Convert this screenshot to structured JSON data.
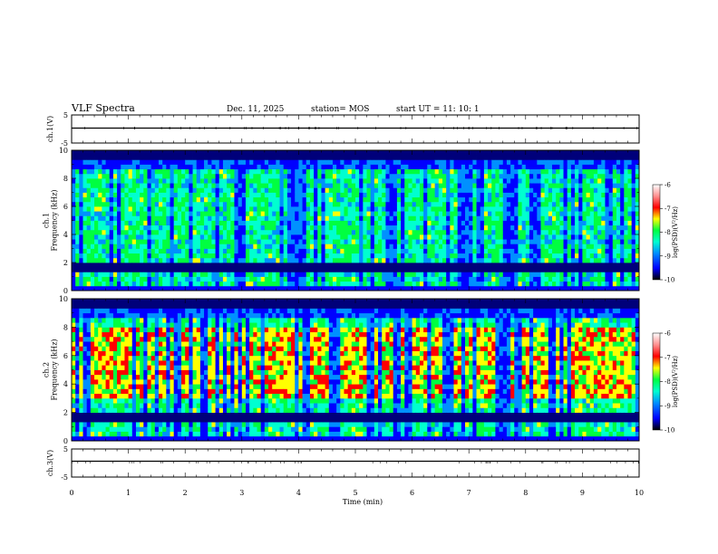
{
  "header": {
    "title": "VLF Spectra",
    "date": "Dec. 11, 2025",
    "station": "station= MOS",
    "start": "start  UT =   11: 10: 1"
  },
  "colors": {
    "spectrum": [
      "#00007a",
      "#0000ff",
      "#0090ff",
      "#00ffd0",
      "#00ff40",
      "#ffff00",
      "#ff0000",
      "#ff9090",
      "#ffffff"
    ]
  },
  "chart_data": [
    {
      "type": "line",
      "name": "ch1-waveform",
      "ylabel": "ch.1(V)",
      "ylim": [
        -5,
        5
      ],
      "yticks": [
        5,
        -5
      ],
      "x": [
        0,
        10
      ],
      "values": [
        0,
        0
      ],
      "xlim": [
        0,
        10
      ]
    },
    {
      "type": "heatmap",
      "name": "ch1-spectrogram",
      "ylabel": "ch.1\nFrequency (kHz)",
      "ylim": [
        0,
        10
      ],
      "yticks": [
        0,
        2,
        4,
        6,
        8,
        10
      ],
      "xlim": [
        0,
        10
      ],
      "colorbar": {
        "label": "log(PSD)(V²/Hz)",
        "range": [
          -10,
          -6
        ],
        "ticks": [
          "-6",
          "-7",
          "-8",
          "-9",
          "-10"
        ]
      }
    },
    {
      "type": "heatmap",
      "name": "ch2-spectrogram",
      "ylabel": "ch.2\nFrequency (kHz)",
      "ylim": [
        0,
        10
      ],
      "yticks": [
        0,
        2,
        4,
        6,
        8,
        10
      ],
      "xlim": [
        0,
        10
      ],
      "colorbar": {
        "label": "log(PSD)(V²/Hz)",
        "range": [
          -10,
          -6
        ],
        "ticks": [
          "-6",
          "-7",
          "-8",
          "-9",
          "-10"
        ]
      }
    },
    {
      "type": "line",
      "name": "ch3-waveform",
      "ylabel": "ch.3(V)",
      "ylim": [
        -5,
        5
      ],
      "yticks": [
        5,
        -5
      ],
      "x": [
        0,
        10
      ],
      "values": [
        0,
        0
      ],
      "xlim": [
        0,
        10
      ]
    }
  ],
  "xaxis": {
    "label": "Time  (min)",
    "ticks": [
      "0",
      "1",
      "2",
      "3",
      "4",
      "5",
      "6",
      "7",
      "8",
      "9",
      "10"
    ]
  }
}
